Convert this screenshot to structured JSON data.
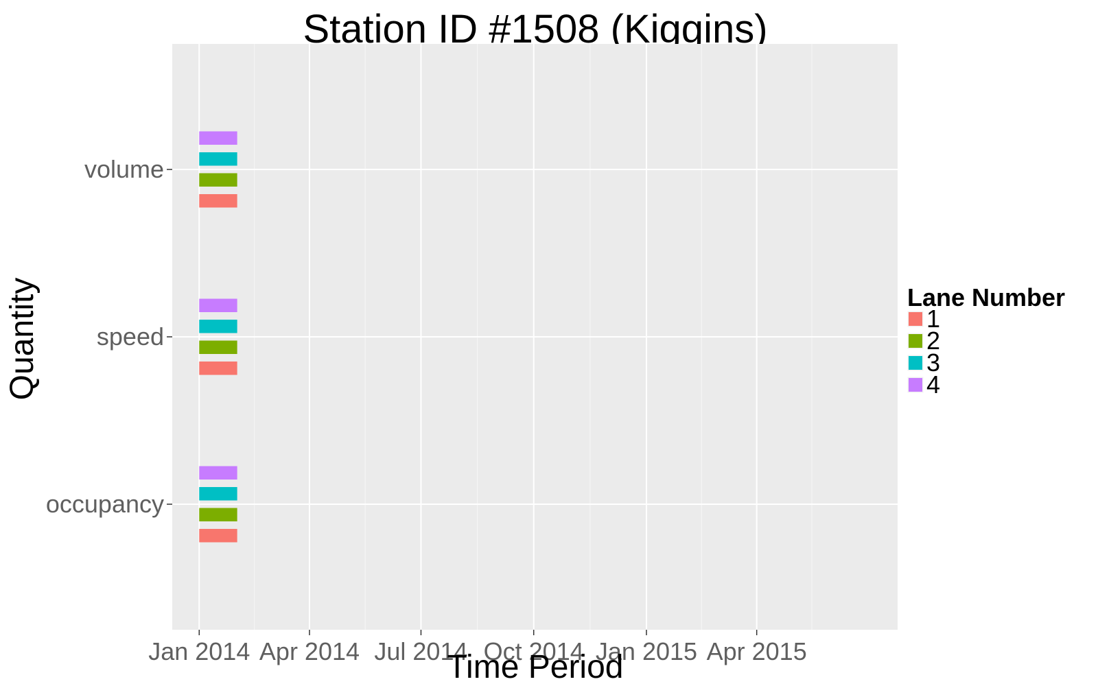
{
  "chart_data": {
    "type": "bar",
    "title": "Station ID #1508 (Kiggins)",
    "xlabel": "Time Period",
    "ylabel": "Quantity",
    "x_scale": "date",
    "xlim": [
      "2013-12-10",
      "2015-07-25"
    ],
    "x_ticks": [
      "2014-01-01",
      "2014-04-01",
      "2014-07-01",
      "2014-10-01",
      "2015-01-01",
      "2015-04-01"
    ],
    "x_tick_labels": [
      "Jan 2014",
      "Apr 2014",
      "Jul 2014",
      "Oct 2014",
      "Jan 2015",
      "Apr 2015"
    ],
    "categories": [
      "occupancy",
      "speed",
      "volume"
    ],
    "grid": true,
    "legend": {
      "title": "Lane Number",
      "position": "right",
      "entries": [
        "1",
        "2",
        "3",
        "4"
      ]
    },
    "series": [
      {
        "name": "1",
        "color": "#F8766D",
        "values": [
          {
            "quantity": "occupancy",
            "start": "2014-01-01",
            "end": "2014-02-01"
          },
          {
            "quantity": "speed",
            "start": "2014-01-01",
            "end": "2014-02-01"
          },
          {
            "quantity": "volume",
            "start": "2014-01-01",
            "end": "2014-02-01"
          }
        ]
      },
      {
        "name": "2",
        "color": "#7CAE00",
        "values": [
          {
            "quantity": "occupancy",
            "start": "2014-01-01",
            "end": "2014-02-01"
          },
          {
            "quantity": "speed",
            "start": "2014-01-01",
            "end": "2014-02-01"
          },
          {
            "quantity": "volume",
            "start": "2014-01-01",
            "end": "2014-02-01"
          }
        ]
      },
      {
        "name": "3",
        "color": "#00BFC4",
        "values": [
          {
            "quantity": "occupancy",
            "start": "2014-01-01",
            "end": "2014-02-01"
          },
          {
            "quantity": "speed",
            "start": "2014-01-01",
            "end": "2014-02-01"
          },
          {
            "quantity": "volume",
            "start": "2014-01-01",
            "end": "2014-02-01"
          }
        ]
      },
      {
        "name": "4",
        "color": "#C77CFF",
        "values": [
          {
            "quantity": "occupancy",
            "start": "2014-01-01",
            "end": "2014-02-01"
          },
          {
            "quantity": "speed",
            "start": "2014-01-01",
            "end": "2014-02-01"
          },
          {
            "quantity": "volume",
            "start": "2014-01-01",
            "end": "2014-02-01"
          }
        ]
      }
    ],
    "colors": {
      "panel_background": "#EBEBEB",
      "grid_major": "#FFFFFF",
      "grid_minor": "#F5F5F5",
      "tick_label": "#5F5F5F"
    }
  }
}
